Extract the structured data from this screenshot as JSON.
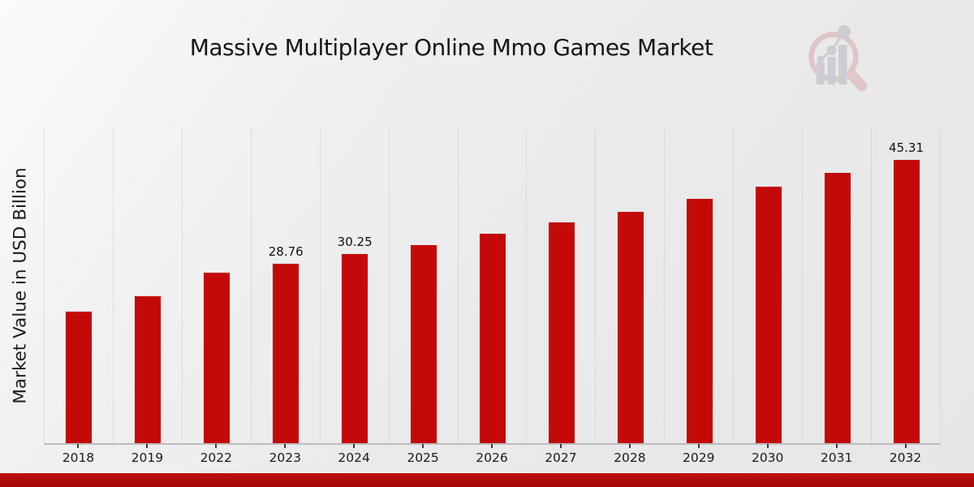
{
  "page": {
    "title": "Massive Multiplayer Online Mmo Games Market"
  },
  "branding": {
    "logo_icon": "magnifier-bar-chart-watermark",
    "logo_ring_color": "#debfbf",
    "logo_glyph_color": "#c7c7ce",
    "accent_red": "#c40909",
    "footer_bar_color": "#ae0a0a"
  },
  "chart_data": {
    "type": "bar",
    "title": "Massive Multiplayer Online Mmo Games Market",
    "xlabel": "",
    "ylabel": "Market Value in USD Billion",
    "categories": [
      "2018",
      "2019",
      "2022",
      "2023",
      "2024",
      "2025",
      "2026",
      "2027",
      "2028",
      "2029",
      "2030",
      "2031",
      "2032"
    ],
    "values": [
      21.1,
      23.6,
      27.3,
      28.76,
      30.25,
      31.8,
      33.5,
      35.3,
      37.0,
      39.1,
      41.1,
      43.2,
      45.31
    ],
    "annotations": [
      {
        "category": "2023",
        "text": "28.76"
      },
      {
        "category": "2024",
        "text": "30.25"
      },
      {
        "category": "2032",
        "text": "45.31"
      }
    ],
    "bar_color": "#c40909",
    "ylim": [
      0,
      50
    ],
    "grid": "vertical-dotted",
    "legend": "none",
    "y_ticks_visible": false
  }
}
